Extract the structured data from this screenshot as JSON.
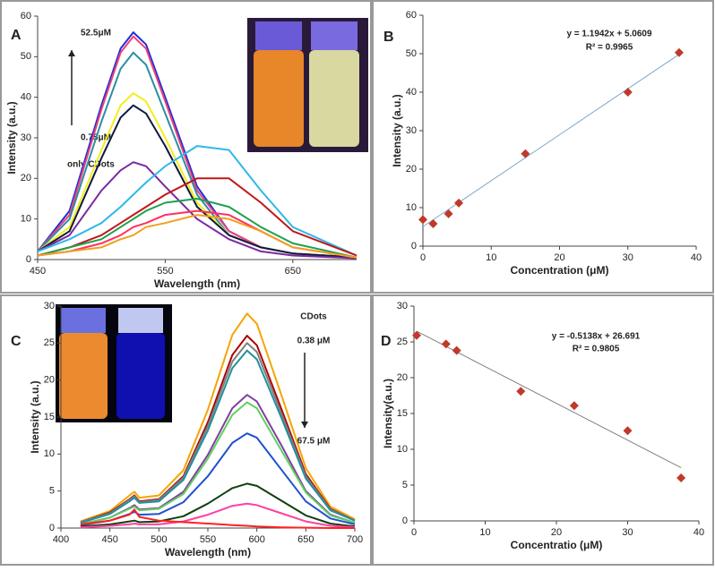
{
  "chart_data": [
    {
      "type": "line",
      "panel": "A",
      "x_label": "Wavelength (nm)",
      "y_label": "Intensity (a.u.)",
      "annotations": [
        "52.5μM",
        "0.75μM",
        "only CDots"
      ],
      "xlim": [
        450,
        700
      ],
      "xticks": [
        450,
        550,
        650
      ],
      "ylim": [
        0,
        60
      ],
      "yticks": [
        0,
        10,
        20,
        30,
        40,
        50,
        60
      ],
      "x": [
        450,
        475,
        500,
        515,
        525,
        535,
        550,
        575,
        600,
        625,
        650,
        700
      ],
      "series": [
        {
          "color": "#1f2fd6",
          "values": [
            2,
            12,
            38,
            52,
            56,
            53,
            40,
            18,
            7,
            3,
            1.5,
            0.5
          ]
        },
        {
          "color": "#f0407a",
          "values": [
            2,
            11,
            37,
            51,
            55,
            52,
            39,
            17,
            7,
            3,
            1.5,
            0.5
          ]
        },
        {
          "color": "#2a8fa0",
          "values": [
            2,
            10,
            34,
            47,
            51,
            48,
            36,
            16,
            6,
            3,
            1.5,
            0.5
          ]
        },
        {
          "color": "#f2ef1a",
          "values": [
            2,
            8,
            27,
            38,
            41,
            39,
            30,
            14,
            6,
            3,
            1.5,
            0.5
          ]
        },
        {
          "color": "#101840",
          "values": [
            2,
            7,
            25,
            35,
            38,
            36,
            28,
            13,
            6,
            3,
            1.5,
            0.5
          ]
        },
        {
          "color": "#7a2aa0",
          "values": [
            2,
            6,
            17,
            22,
            24,
            23,
            18,
            10,
            5,
            2,
            1,
            0.3
          ]
        },
        {
          "color": "#30b8e8",
          "values": [
            2,
            5,
            9,
            13,
            16,
            19,
            23,
            28,
            27,
            17,
            8,
            1
          ]
        },
        {
          "color": "#c01818",
          "values": [
            1,
            3,
            6,
            9,
            11,
            13,
            16,
            20,
            20,
            14,
            7,
            1
          ]
        },
        {
          "color": "#20a050",
          "values": [
            1,
            3,
            5,
            8,
            10,
            12,
            14,
            15,
            13,
            8,
            4,
            0.5
          ]
        },
        {
          "color": "#ff3060",
          "values": [
            1,
            2,
            4,
            6,
            8,
            9,
            11,
            12,
            11,
            7,
            3,
            0.5
          ]
        },
        {
          "color": "#f0a020",
          "values": [
            1,
            2,
            3,
            5,
            6,
            8,
            9,
            11,
            10,
            7,
            3,
            0.5
          ]
        }
      ]
    },
    {
      "type": "scatter",
      "panel": "B",
      "x_label": "Concentration (μM)",
      "y_label": "Intensity (a.u.)",
      "annotations": [
        "y = 1.1942x + 5.0609",
        "R² = 0.9965"
      ],
      "xlim": [
        0,
        40
      ],
      "xticks": [
        0,
        10,
        20,
        30,
        40
      ],
      "ylim": [
        0,
        60
      ],
      "yticks": [
        0,
        10,
        20,
        30,
        40,
        50,
        60
      ],
      "x": [
        0,
        1.5,
        3.75,
        5.25,
        15,
        30,
        37.5
      ],
      "values": [
        6.9,
        5.8,
        8.4,
        11.2,
        24,
        40,
        50.3
      ],
      "color": "#c0392b",
      "trendline": {
        "slope": 1.1942,
        "intercept": 5.0609,
        "color": "#7fa7c9"
      }
    },
    {
      "type": "line",
      "panel": "C",
      "x_label": "Wavelength (nm)",
      "y_label": "Intensity (a.u.)",
      "annotations": [
        "CDots",
        "0.38 μM",
        "67.5 μM"
      ],
      "xlim": [
        400,
        700
      ],
      "xticks": [
        400,
        450,
        500,
        550,
        600,
        650,
        700
      ],
      "ylim": [
        0,
        30
      ],
      "yticks": [
        0,
        5,
        10,
        15,
        20,
        25,
        30
      ],
      "x": [
        420,
        450,
        470,
        475,
        480,
        500,
        525,
        550,
        575,
        590,
        600,
        625,
        650,
        675,
        700
      ],
      "series": [
        {
          "color": "#f5a500",
          "values": [
            0.9,
            2.3,
            4.4,
            4.9,
            4.1,
            4.4,
            7.8,
            16,
            26.1,
            29,
            27.6,
            18,
            8.1,
            2.9,
            1.2
          ]
        },
        {
          "color": "#b00000",
          "values": [
            0.8,
            2.1,
            3.9,
            4.4,
            3.6,
            3.9,
            7,
            14.3,
            23.4,
            26,
            24.7,
            16.1,
            7.3,
            2.6,
            1
          ]
        },
        {
          "color": "#808080",
          "values": [
            0.8,
            2,
            3.8,
            4.3,
            3.5,
            3.8,
            6.8,
            13.8,
            22.5,
            25,
            23.8,
            15.5,
            7,
            2.5,
            1
          ]
        },
        {
          "color": "#2090a0",
          "values": [
            0.7,
            1.9,
            3.6,
            4.1,
            3.4,
            3.6,
            6.5,
            13.2,
            21.6,
            24,
            22.8,
            14.9,
            6.7,
            2.4,
            1
          ]
        },
        {
          "color": "#8040a0",
          "values": [
            0.5,
            1.4,
            2.7,
            3.1,
            2.5,
            2.7,
            4.9,
            9.9,
            16.2,
            18,
            17.1,
            11.2,
            5,
            1.8,
            0.7
          ]
        },
        {
          "color": "#60d060",
          "values": [
            0.5,
            1.4,
            2.6,
            2.9,
            2.4,
            2.6,
            4.6,
            9.4,
            15.3,
            17,
            16.2,
            10.5,
            4.8,
            1.7,
            0.7
          ]
        },
        {
          "color": "#2050d0",
          "values": [
            0.4,
            1,
            1.9,
            2.2,
            1.8,
            1.9,
            3.5,
            7,
            11.5,
            12.8,
            12.2,
            7.9,
            3.6,
            1.3,
            0.5
          ]
        },
        {
          "color": "#104010",
          "values": [
            0.2,
            0.5,
            0.9,
            1,
            0.8,
            0.9,
            1.6,
            3.3,
            5.4,
            6,
            5.7,
            3.7,
            1.7,
            0.6,
            0.2
          ]
        },
        {
          "color": "#ff40a0",
          "values": [
            0.1,
            0.3,
            0.5,
            0.6,
            0.5,
            0.5,
            0.9,
            1.8,
            3,
            3.3,
            3.1,
            2,
            0.9,
            0.3,
            0.1
          ]
        },
        {
          "color": "#ff2020",
          "values": [
            0.5,
            1,
            1.8,
            2.5,
            1.5,
            1,
            0.8,
            0.6,
            0.4,
            0.3,
            0.2,
            0.1,
            0.05,
            0,
            0
          ]
        }
      ]
    },
    {
      "type": "scatter",
      "panel": "D",
      "x_label": "Concentratio (μM)",
      "y_label": "Intensity(a.u.)",
      "annotations": [
        "y = -0.5138x + 26.691",
        "R² = 0.9805"
      ],
      "xlim": [
        0,
        40
      ],
      "xticks": [
        0,
        10,
        20,
        30,
        40
      ],
      "ylim": [
        0,
        30
      ],
      "yticks": [
        0,
        5,
        10,
        15,
        20,
        25,
        30
      ],
      "x": [
        0.38,
        4.5,
        6,
        15,
        22.5,
        30,
        37.5
      ],
      "values": [
        25.9,
        24.7,
        23.8,
        18.1,
        16.1,
        12.6,
        6
      ],
      "color": "#c0392b",
      "trendline": {
        "slope": -0.5138,
        "intercept": 26.691,
        "color": "#808080"
      }
    }
  ]
}
